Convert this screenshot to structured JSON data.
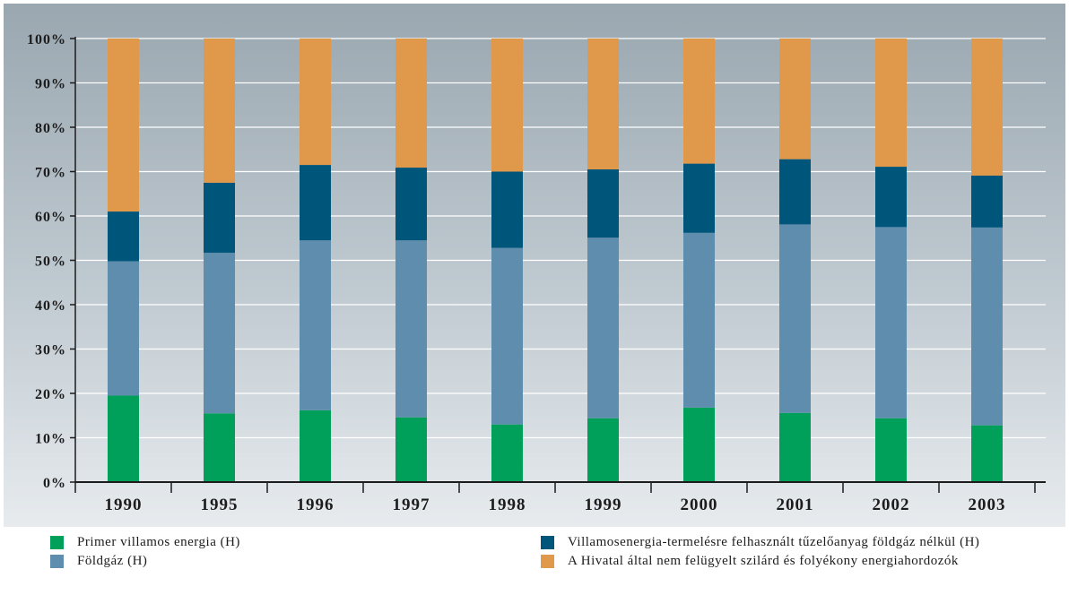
{
  "chart_data": {
    "type": "bar",
    "stacked": true,
    "categories": [
      "1990",
      "1995",
      "1996",
      "1997",
      "1998",
      "1999",
      "2000",
      "2001",
      "2002",
      "2003"
    ],
    "series": [
      {
        "name": "Primer villamos energia (H)",
        "color": "#00a05a",
        "values": [
          19.5,
          15.5,
          16.2,
          14.6,
          13.0,
          14.4,
          16.8,
          15.6,
          14.4,
          12.8
        ]
      },
      {
        "name": "Földgáz (H)",
        "color": "#5f8dad",
        "values": [
          30.3,
          36.2,
          38.3,
          39.9,
          39.8,
          40.7,
          39.4,
          42.5,
          43.1,
          44.6
        ]
      },
      {
        "name": "Villamosenergia-termelésre felhasznált tűzelőanyag földgáz nélkül (H)",
        "color": "#00557b",
        "values": [
          11.2,
          15.8,
          17.0,
          16.4,
          17.2,
          15.4,
          15.6,
          14.7,
          13.6,
          11.7
        ]
      },
      {
        "name": "A Hivatal által nem felügyelt szilárd és folyékony energiahordozók",
        "color": "#e0994a",
        "values": [
          39.0,
          32.5,
          28.5,
          29.1,
          30.0,
          29.5,
          28.2,
          27.2,
          28.9,
          30.9
        ]
      }
    ],
    "y_tick_labels": [
      "0%",
      "10%",
      "20%",
      "30%",
      "40%",
      "50%",
      "60%",
      "70%",
      "80%",
      "90%",
      "100%"
    ],
    "ylim": [
      0,
      100
    ],
    "grid": true,
    "legend_position": "bottom",
    "title": "",
    "xlabel": "",
    "ylabel": ""
  }
}
